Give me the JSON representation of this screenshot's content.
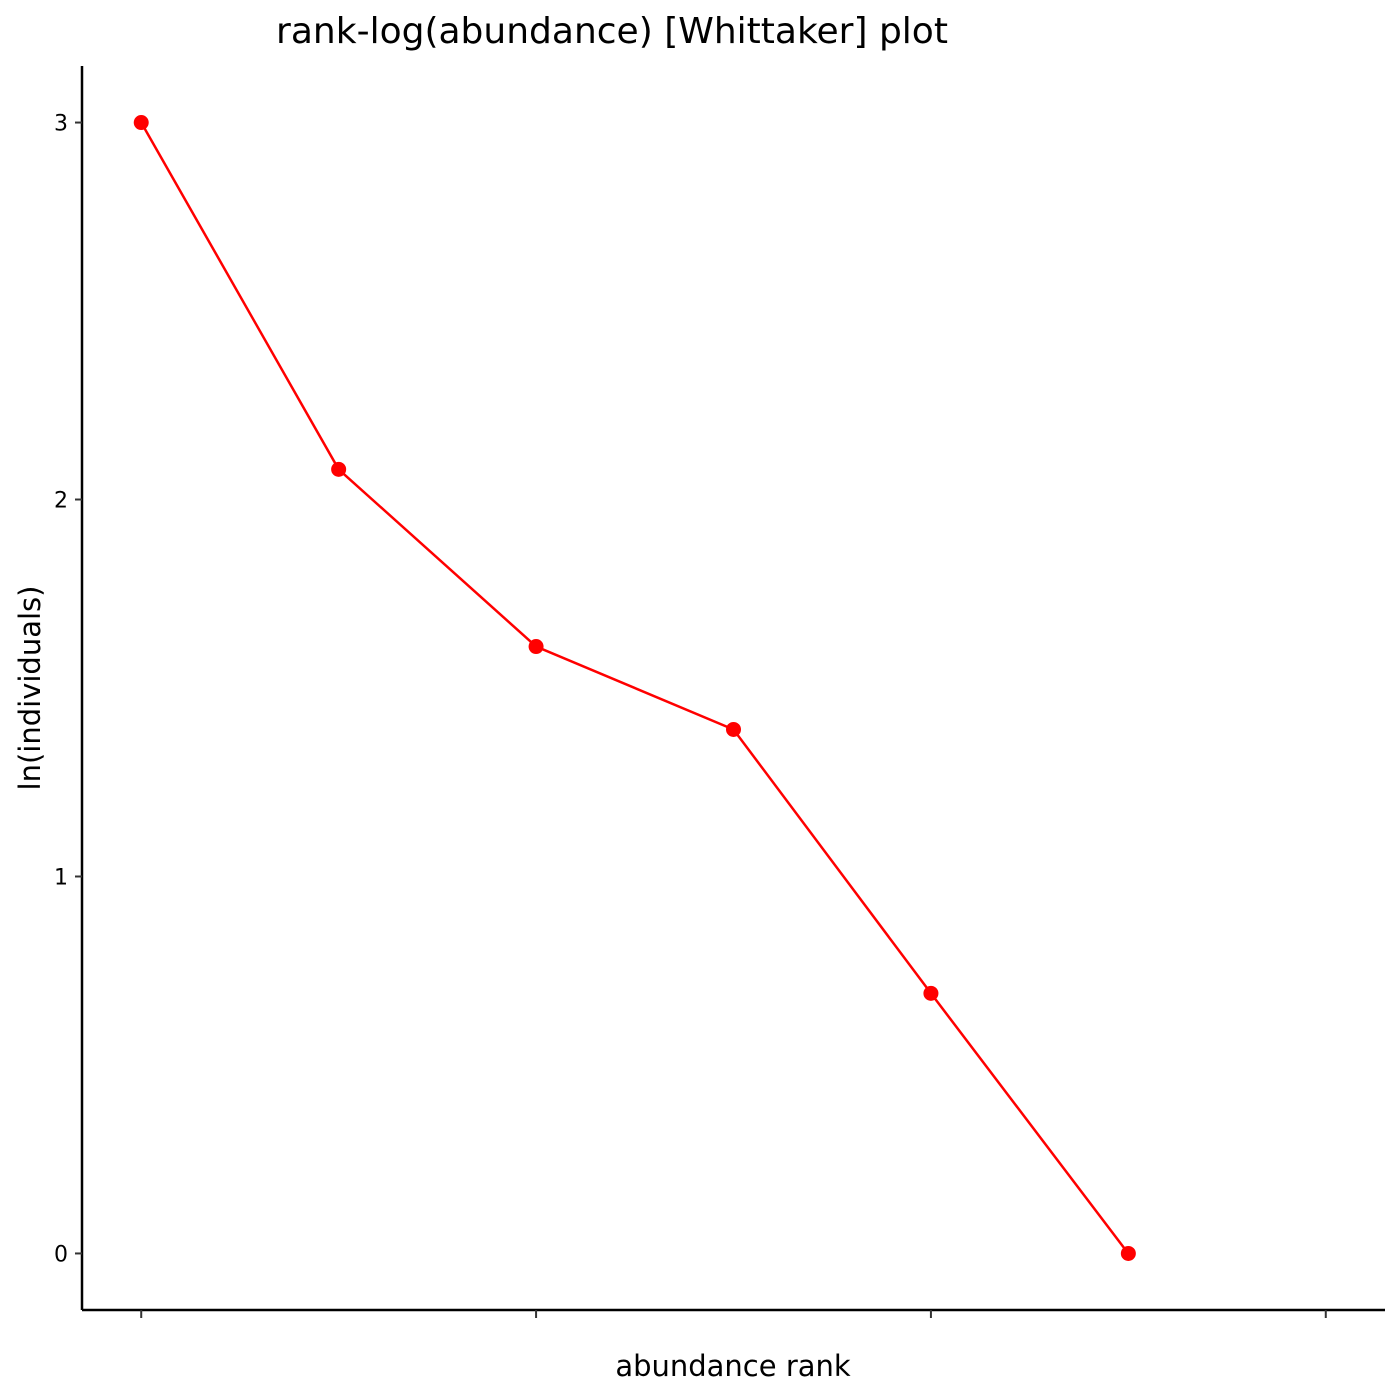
{
  "chart_data": {
    "type": "line",
    "title": "rank-log(abundance) [Whittaker] plot",
    "xlabel": "abundance rank",
    "ylabel": "ln(individuals)",
    "x": [
      1,
      2,
      3,
      4,
      5,
      6
    ],
    "y": [
      3.0,
      2.08,
      1.61,
      1.39,
      0.69,
      0.0
    ],
    "xlim": [
      0.7,
      7.3
    ],
    "ylim": [
      -0.15,
      3.15
    ],
    "x_ticks": [
      1,
      3,
      5,
      7
    ],
    "x_tick_labels": [
      "",
      "",
      "",
      ""
    ],
    "y_ticks": [
      0,
      1,
      2,
      3
    ],
    "y_tick_labels": [
      "0",
      "1",
      "2",
      "3"
    ],
    "series": [
      {
        "color": "#ff0000",
        "marker": "circle"
      }
    ],
    "grid": false,
    "legend": "none"
  }
}
